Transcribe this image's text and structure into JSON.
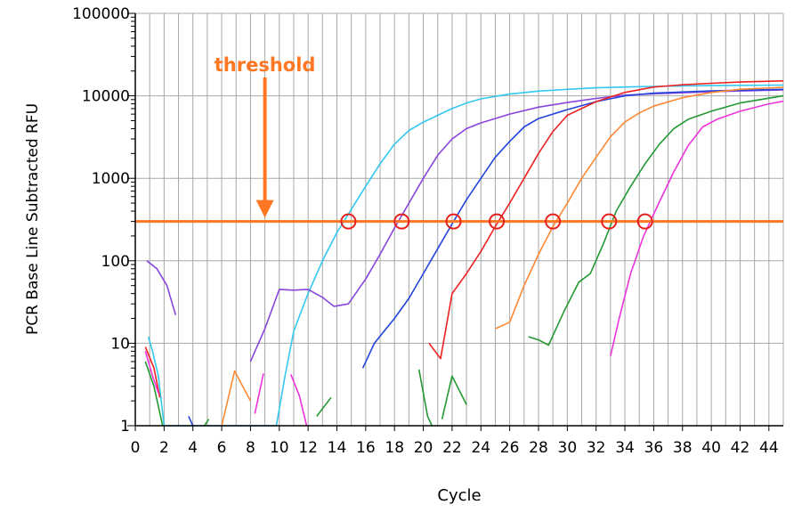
{
  "chart_data": {
    "type": "line",
    "title": "",
    "xlabel": "Cycle",
    "ylabel": "PCR Base Line Subtracted RFU",
    "xlim": [
      0,
      45
    ],
    "ylim": [
      1,
      100000
    ],
    "yscale": "log",
    "grid": true,
    "x_ticks": [
      0,
      2,
      4,
      6,
      8,
      10,
      12,
      14,
      16,
      18,
      20,
      22,
      24,
      26,
      28,
      30,
      32,
      34,
      36,
      38,
      40,
      42,
      44
    ],
    "y_ticks": [
      1,
      10,
      100,
      1000,
      10000,
      100000
    ],
    "threshold": {
      "label": "threshold",
      "value": 300,
      "color": "#ff7722",
      "arrow_x": 9
    },
    "crossings": [
      {
        "x": 14.8,
        "y": 300
      },
      {
        "x": 18.5,
        "y": 300
      },
      {
        "x": 22.1,
        "y": 300
      },
      {
        "x": 25.1,
        "y": 300
      },
      {
        "x": 29.0,
        "y": 300
      },
      {
        "x": 32.9,
        "y": 300
      },
      {
        "x": 35.4,
        "y": 300
      }
    ],
    "series": [
      {
        "color": "#33c8f0",
        "points": [
          [
            0.9,
            12
          ],
          [
            1.2,
            8
          ],
          [
            1.6,
            4
          ],
          [
            2.0,
            1
          ],
          [
            9.8,
            1
          ],
          [
            10.4,
            4
          ],
          [
            11,
            14
          ],
          [
            12,
            40
          ],
          [
            13,
            100
          ],
          [
            14,
            220
          ],
          [
            15,
            420
          ],
          [
            16,
            800
          ],
          [
            17,
            1500
          ],
          [
            18,
            2600
          ],
          [
            19,
            3800
          ],
          [
            20,
            4800
          ],
          [
            21,
            5800
          ],
          [
            22,
            7000
          ],
          [
            23,
            8200
          ],
          [
            24,
            9200
          ],
          [
            26,
            10500
          ],
          [
            28,
            11400
          ],
          [
            30,
            12000
          ],
          [
            32,
            12500
          ],
          [
            34,
            12800
          ],
          [
            36,
            13000
          ],
          [
            40,
            13300
          ],
          [
            45,
            13500
          ]
        ]
      },
      {
        "color": "#8844dd",
        "points": [
          [
            0.8,
            100
          ],
          [
            1.5,
            80
          ],
          [
            2.2,
            50
          ],
          [
            2.8,
            22
          ]
        ],
        "segments_extra": [
          [
            [
              8,
              6
            ],
            [
              9,
              15
            ],
            [
              10,
              45
            ],
            [
              11,
              44
            ],
            [
              12,
              45
            ],
            [
              13,
              36
            ],
            [
              13.8,
              28
            ],
            [
              14.8,
              30
            ],
            [
              16,
              60
            ],
            [
              17,
              120
            ],
            [
              18,
              250
            ],
            [
              19,
              500
            ],
            [
              20,
              1000
            ],
            [
              21,
              1900
            ],
            [
              22,
              3000
            ],
            [
              23,
              4000
            ],
            [
              24,
              4700
            ],
            [
              26,
              6000
            ],
            [
              28,
              7300
            ],
            [
              30,
              8300
            ],
            [
              32,
              9300
            ],
            [
              34,
              10200
            ],
            [
              36,
              10600
            ],
            [
              40,
              11200
            ],
            [
              45,
              11800
            ]
          ]
        ]
      },
      {
        "color": "#2244dd",
        "points": [
          [
            15.8,
            5
          ],
          [
            16.6,
            10
          ],
          [
            18,
            20
          ],
          [
            19,
            35
          ],
          [
            20,
            70
          ],
          [
            21,
            140
          ],
          [
            22,
            280
          ],
          [
            23,
            550
          ],
          [
            24,
            1000
          ],
          [
            25,
            1800
          ],
          [
            26,
            2800
          ],
          [
            27,
            4200
          ],
          [
            28,
            5300
          ],
          [
            30,
            6800
          ],
          [
            32,
            8500
          ],
          [
            34,
            10000
          ],
          [
            36,
            10800
          ],
          [
            40,
            11500
          ],
          [
            45,
            12000
          ]
        ],
        "segments_extra": [
          [
            [
              3.7,
              1.3
            ],
            [
              4.0,
              1.0
            ]
          ]
        ]
      },
      {
        "color": "#ee2222",
        "points": [
          [
            20.4,
            10
          ],
          [
            21.2,
            6.5
          ],
          [
            22,
            40
          ],
          [
            23,
            70
          ],
          [
            24,
            130
          ],
          [
            25,
            260
          ],
          [
            26,
            500
          ],
          [
            27,
            1000
          ],
          [
            28,
            2000
          ],
          [
            29,
            3700
          ],
          [
            30,
            5800
          ],
          [
            32,
            8500
          ],
          [
            34,
            11000
          ],
          [
            36,
            12800
          ],
          [
            38,
            13600
          ],
          [
            40,
            14200
          ],
          [
            42,
            14700
          ],
          [
            45,
            15200
          ]
        ],
        "segments_extra": [
          [
            [
              0.7,
              9
            ],
            [
              1.3,
              5
            ],
            [
              1.7,
              2.2
            ]
          ]
        ]
      },
      {
        "color": "#ff8833",
        "points": [
          [
            25,
            15
          ],
          [
            26,
            18
          ],
          [
            27,
            50
          ],
          [
            28,
            120
          ],
          [
            29,
            260
          ],
          [
            30,
            500
          ],
          [
            31,
            1000
          ],
          [
            32,
            1800
          ],
          [
            33,
            3200
          ],
          [
            34,
            4800
          ],
          [
            35,
            6200
          ],
          [
            36,
            7500
          ],
          [
            38,
            9500
          ],
          [
            40,
            11000
          ],
          [
            42,
            12000
          ],
          [
            45,
            12700
          ]
        ],
        "segments_extra": [
          [
            [
              6,
              1.0
            ],
            [
              6.9,
              4.6
            ],
            [
              8,
              2.0
            ]
          ]
        ]
      },
      {
        "color": "#229933",
        "points": [
          [
            27.3,
            12
          ],
          [
            28,
            11
          ],
          [
            28.7,
            9.5
          ],
          [
            29.8,
            25
          ],
          [
            30.8,
            55
          ],
          [
            31.6,
            70
          ],
          [
            32.5,
            160
          ],
          [
            33.4,
            400
          ],
          [
            34.4,
            800
          ],
          [
            35.4,
            1500
          ],
          [
            36.4,
            2600
          ],
          [
            37.4,
            4000
          ],
          [
            38.4,
            5200
          ],
          [
            40,
            6500
          ],
          [
            42,
            8200
          ],
          [
            45,
            10000
          ]
        ],
        "segments_extra": [
          [
            [
              0.7,
              6
            ],
            [
              1.3,
              3
            ],
            [
              1.9,
              1
            ]
          ],
          [
            [
              4.8,
              1.0
            ],
            [
              5.1,
              1.2
            ]
          ],
          [
            [
              12.6,
              1.3
            ],
            [
              13.6,
              2.2
            ]
          ],
          [
            [
              19.7,
              4.8
            ],
            [
              20.3,
              1.3
            ],
            [
              20.6,
              1
            ]
          ],
          [
            [
              21.3,
              1.2
            ],
            [
              22.0,
              4.0
            ],
            [
              23.0,
              1.8
            ]
          ]
        ]
      },
      {
        "color": "#ee33dd",
        "points": [
          [
            33,
            7
          ],
          [
            33.6,
            20
          ],
          [
            34.4,
            70
          ],
          [
            35.3,
            200
          ],
          [
            36.4,
            520
          ],
          [
            37.4,
            1200
          ],
          [
            38.4,
            2500
          ],
          [
            39.4,
            4200
          ],
          [
            40.4,
            5200
          ],
          [
            42,
            6500
          ],
          [
            44,
            8000
          ],
          [
            45,
            8600
          ]
        ],
        "segments_extra": [
          [
            [
              0.7,
              8
            ],
            [
              1.2,
              4
            ],
            [
              1.6,
              2.5
            ]
          ],
          [
            [
              8.3,
              1.4
            ],
            [
              8.9,
              4.3
            ]
          ],
          [
            [
              10.8,
              4.2
            ],
            [
              11.4,
              2.3
            ],
            [
              11.9,
              1.0
            ]
          ]
        ]
      }
    ]
  }
}
